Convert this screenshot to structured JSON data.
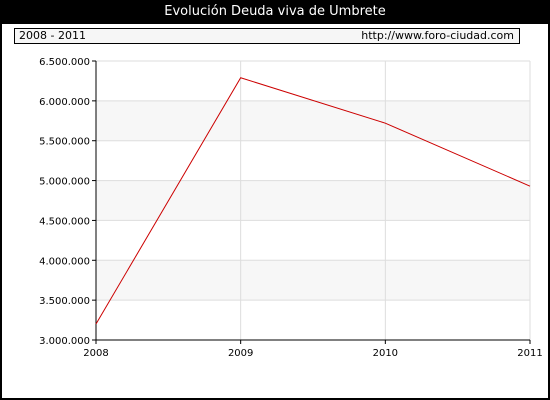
{
  "title": "Evolución Deuda viva de Umbrete",
  "info_bar": {
    "period": "2008 - 2011",
    "source_url": "http://www.foro-ciudad.com"
  },
  "colors": {
    "frame": "#000000",
    "plot_background": "#f7f7f7",
    "grid": "#dddddd",
    "series_line": "#cc0000"
  },
  "chart_data": {
    "type": "line",
    "title": "Evolución Deuda viva de Umbrete",
    "xlabel": "",
    "ylabel": "",
    "x": [
      "2008",
      "2009",
      "2010",
      "2011"
    ],
    "series": [
      {
        "values": [
          3200000,
          6290000,
          5720000,
          4930000
        ]
      }
    ],
    "ylim": [
      3000000,
      6500000
    ],
    "yticks": [
      3000000,
      3500000,
      4000000,
      4500000,
      5000000,
      5500000,
      6000000,
      6500000
    ],
    "ytick_labels": [
      "3.000.000",
      "3.500.000",
      "4.000.000",
      "4.500.000",
      "5.000.000",
      "5.500.000",
      "6.000.000",
      "6.500.000"
    ],
    "grid": true,
    "legend": "none"
  }
}
